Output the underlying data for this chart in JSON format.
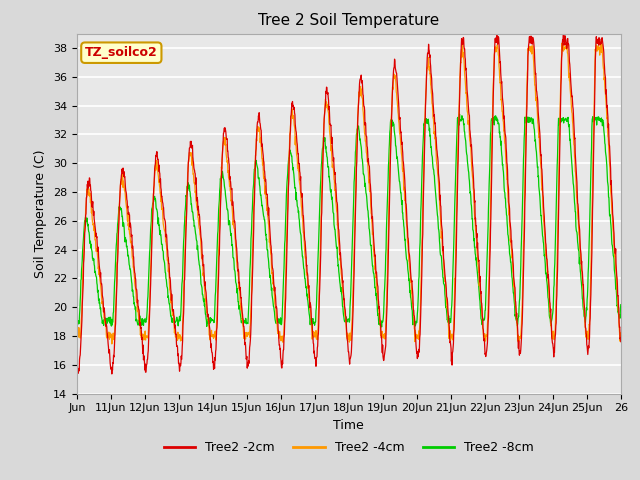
{
  "title": "Tree 2 Soil Temperature",
  "xlabel": "Time",
  "ylabel": "Soil Temperature (C)",
  "ylim": [
    14,
    39
  ],
  "yticks": [
    14,
    16,
    18,
    20,
    22,
    24,
    26,
    28,
    30,
    32,
    34,
    36,
    38
  ],
  "legend_labels": [
    "Tree2 -2cm",
    "Tree2 -4cm",
    "Tree2 -8cm"
  ],
  "legend_colors": [
    "#dd0000",
    "#ff9900",
    "#00cc00"
  ],
  "annotation_text": "TZ_soilco2",
  "annotation_color": "#cc0000",
  "annotation_bg": "#ffffcc",
  "annotation_border": "#cc9900",
  "plot_bg": "#e8e8e8",
  "grid_color": "#ffffff",
  "title_fontsize": 11,
  "axis_fontsize": 9,
  "tick_fontsize": 8
}
